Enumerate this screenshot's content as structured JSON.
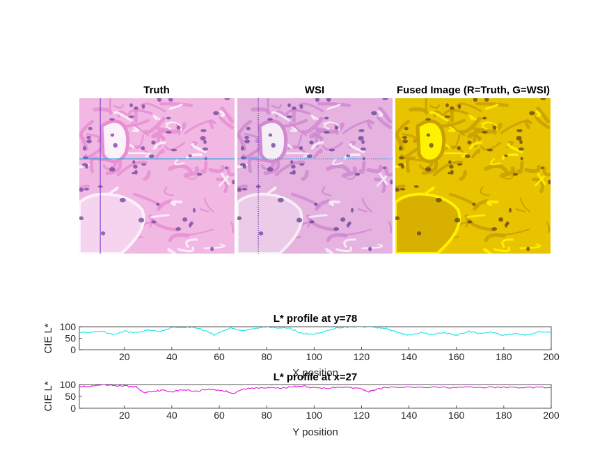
{
  "chart_data": [
    {
      "type": "image",
      "title": "Truth",
      "crosshair": {
        "x": 27,
        "y": 78,
        "color": "#7030d0",
        "line_color_h": "#1aa0e0"
      },
      "palette": {
        "bg": "#f2b8e4",
        "fiber": "#e68fd2",
        "nucleus": "#7a4aa0",
        "lumen": "#f6d4f0",
        "white": "#fcf2fb"
      }
    },
    {
      "type": "image",
      "title": "WSI",
      "crosshair": {
        "x": 27,
        "y": 78,
        "color": "#5020a0",
        "style": "dotted"
      },
      "palette": {
        "bg": "#e6b2e0",
        "fiber": "#cf8ad0",
        "nucleus": "#6a4898",
        "lumen": "#eccbe8",
        "white": "#f6eef6"
      }
    },
    {
      "type": "image",
      "title": "Fused Image (R=Truth, G=WSI)",
      "palette": {
        "bg": "#e8c400",
        "fiber": "#c8a000",
        "nucleus": "#6a4a10",
        "lumen": "#d8b000",
        "white": "#fff200"
      }
    },
    {
      "type": "line",
      "title": "L* profile at y=78",
      "xlabel": "X position",
      "ylabel": "CIE L*",
      "xlim": [
        1,
        200
      ],
      "ylim": [
        0,
        100
      ],
      "xticks": [
        20,
        40,
        60,
        80,
        100,
        120,
        140,
        160,
        180,
        200
      ],
      "yticks": [
        0,
        50,
        100
      ],
      "color": "#00e5e5",
      "series": [
        {
          "name": "L*",
          "x": [
            1,
            5,
            10,
            15,
            20,
            25,
            30,
            35,
            40,
            45,
            50,
            55,
            58,
            62,
            65,
            70,
            75,
            80,
            85,
            90,
            95,
            100,
            105,
            110,
            115,
            120,
            125,
            130,
            133,
            137,
            140,
            145,
            150,
            155,
            160,
            165,
            170,
            175,
            180,
            185,
            190,
            195,
            200
          ],
          "values": [
            78,
            74,
            80,
            66,
            80,
            74,
            86,
            80,
            96,
            98,
            96,
            80,
            64,
            84,
            96,
            82,
            92,
            100,
            96,
            92,
            70,
            68,
            80,
            96,
            100,
            100,
            98,
            94,
            82,
            70,
            62,
            74,
            66,
            74,
            62,
            80,
            70,
            76,
            62,
            70,
            64,
            78,
            76
          ]
        }
      ]
    },
    {
      "type": "line",
      "title": "L* profile at x=27",
      "xlabel": "Y position",
      "ylabel": "CIE L*",
      "xlim": [
        1,
        200
      ],
      "ylim": [
        0,
        100
      ],
      "xticks": [
        20,
        40,
        60,
        80,
        100,
        120,
        140,
        160,
        180,
        200
      ],
      "yticks": [
        0,
        50,
        100
      ],
      "color": "#e000e0",
      "series": [
        {
          "name": "L*",
          "x": [
            1,
            5,
            10,
            15,
            20,
            25,
            28,
            32,
            36,
            40,
            45,
            50,
            55,
            60,
            63,
            66,
            70,
            75,
            80,
            85,
            90,
            95,
            100,
            105,
            110,
            115,
            120,
            123,
            126,
            130,
            140,
            150,
            160,
            170,
            180,
            190,
            200
          ],
          "values": [
            94,
            90,
            98,
            96,
            94,
            90,
            66,
            72,
            76,
            70,
            78,
            72,
            80,
            76,
            72,
            62,
            80,
            86,
            88,
            84,
            90,
            94,
            86,
            84,
            90,
            88,
            82,
            70,
            78,
            88,
            88,
            88,
            88,
            88,
            88,
            88,
            88
          ]
        }
      ]
    }
  ]
}
